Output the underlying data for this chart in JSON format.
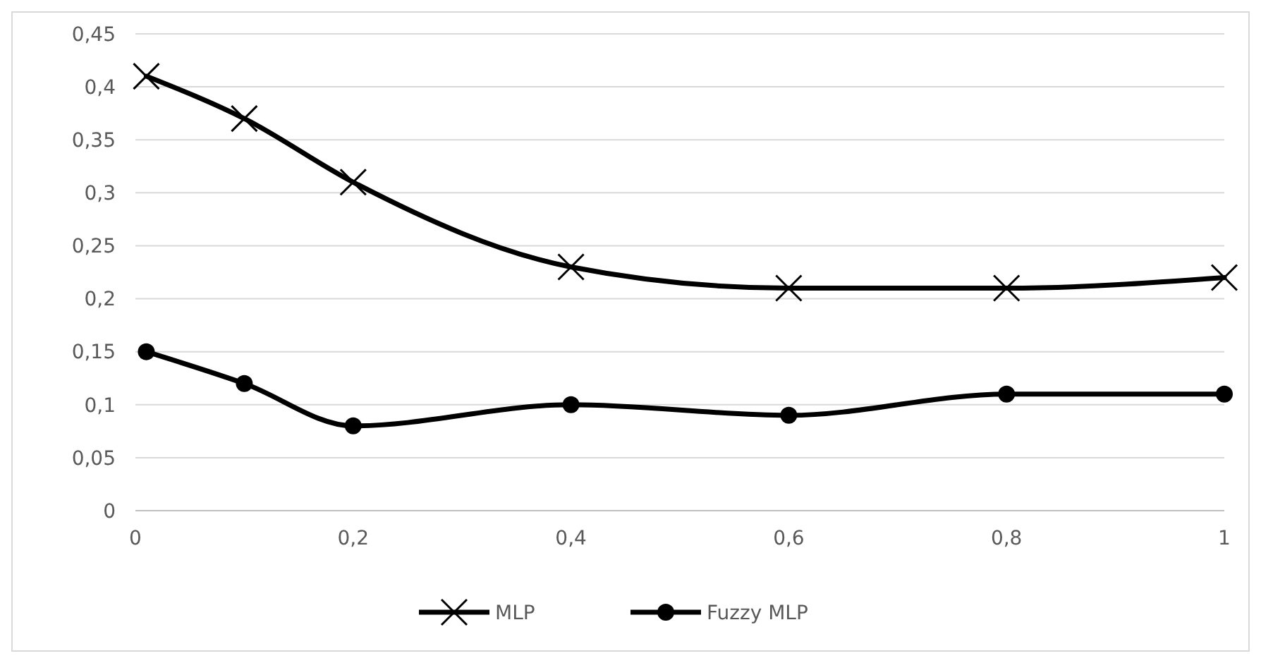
{
  "chart_data": {
    "type": "line",
    "xlim": [
      0,
      1
    ],
    "xticks": [
      0,
      {
        "value": 0.2,
        "label": "0,2"
      },
      {
        "value": 0.4,
        "label": "0,4"
      },
      {
        "value": 0.6,
        "label": "0,6"
      },
      {
        "value": 0.8,
        "label": "0,8"
      },
      1
    ],
    "ylim": [
      0,
      0.45
    ],
    "yticks": [
      0,
      {
        "value": 0.05,
        "label": "0,05"
      },
      {
        "value": 0.1,
        "label": "0,1"
      },
      {
        "value": 0.15,
        "label": "0,15"
      },
      {
        "value": 0.2,
        "label": "0,2"
      },
      {
        "value": 0.25,
        "label": "0,25"
      },
      {
        "value": 0.3,
        "label": "0,3"
      },
      {
        "value": 0.35,
        "label": "0,35"
      },
      {
        "value": 0.4,
        "label": "0,4"
      },
      {
        "value": 0.45,
        "label": "0,45"
      }
    ],
    "grid": "y",
    "legend": "bottom",
    "line_style": "solid",
    "series": [
      {
        "name": "MLP",
        "color": "#000000",
        "marker": "cross",
        "x": [
          0.01,
          0.1,
          0.2,
          0.4,
          0.6,
          0.8,
          1
        ],
        "values": [
          0.41,
          0.37,
          0.31,
          0.23,
          0.21,
          0.21,
          0.22
        ]
      },
      {
        "name": "Fuzzy MLP",
        "color": "#000000",
        "marker": "circle",
        "x": [
          0.01,
          0.1,
          0.2,
          0.4,
          0.6,
          0.8,
          1
        ],
        "values": [
          0.15,
          0.12,
          0.08,
          0.1,
          0.09,
          0.11,
          0.11
        ]
      }
    ]
  }
}
